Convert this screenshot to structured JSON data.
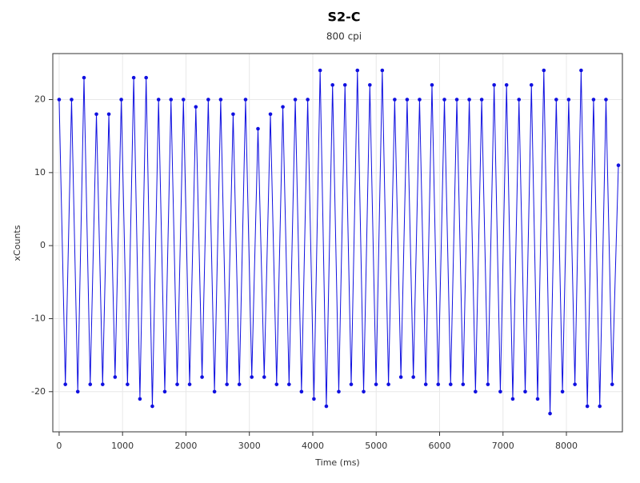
{
  "chart_data": {
    "type": "line",
    "title": "S2-C",
    "subtitle": "800 cpi",
    "x_label": "Time (ms)",
    "y_label": "xCounts",
    "x": [
      0,
      98,
      196,
      294,
      392,
      490,
      588,
      686,
      784,
      882,
      980,
      1078,
      1176,
      1274,
      1372,
      1470,
      1568,
      1666,
      1764,
      1862,
      1960,
      2058,
      2156,
      2254,
      2352,
      2450,
      2548,
      2646,
      2744,
      2842,
      2940,
      3038,
      3136,
      3234,
      3332,
      3430,
      3528,
      3626,
      3724,
      3822,
      3920,
      4018,
      4116,
      4214,
      4312,
      4410,
      4508,
      4606,
      4704,
      4802,
      4900,
      4998,
      5096,
      5194,
      5292,
      5390,
      5488,
      5586,
      5684,
      5782,
      5880,
      5978,
      6076,
      6174,
      6272,
      6370,
      6468,
      6566,
      6664,
      6762,
      6860,
      6958,
      7056,
      7154,
      7252,
      7350,
      7448,
      7546,
      7644,
      7742,
      7840,
      7938,
      8036,
      8134,
      8232,
      8330,
      8428,
      8526,
      8624,
      8722,
      8820
    ],
    "series": [
      {
        "color": "#1010e0",
        "values": [
          20,
          -19,
          20,
          -20,
          23,
          -19,
          18,
          -19,
          18,
          -18,
          20,
          -19,
          23,
          -21,
          23,
          -22,
          20,
          -20,
          20,
          -19,
          20,
          -19,
          19,
          -18,
          20,
          -20,
          20,
          -19,
          18,
          -19,
          20,
          -18,
          16,
          -18,
          18,
          -19,
          19,
          -19,
          20,
          -20,
          20,
          -21,
          24,
          -22,
          22,
          -20,
          22,
          -19,
          24,
          -20,
          22,
          -19,
          24,
          -19,
          20,
          -18,
          20,
          -18,
          20,
          -19,
          22,
          -19,
          20,
          -19,
          20,
          -19,
          20,
          -20,
          20,
          -19,
          22,
          -20,
          22,
          -21,
          20,
          -20,
          22,
          -21,
          24,
          -23,
          20,
          -20,
          20,
          -19,
          24,
          -22,
          20,
          -22,
          20,
          -19,
          11
        ]
      }
    ],
    "xlim": [
      -100,
      8883
    ],
    "ylim": [
      -25.5,
      26.3
    ],
    "xticks": [
      0,
      1000,
      2000,
      3000,
      4000,
      5000,
      6000,
      7000,
      8000
    ],
    "yticks": [
      -20,
      -10,
      0,
      10,
      20
    ],
    "grid": true
  }
}
